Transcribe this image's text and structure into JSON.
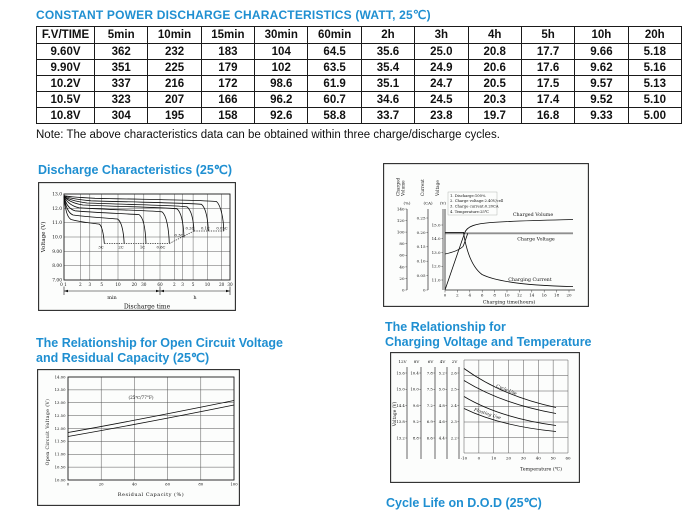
{
  "colors": {
    "accent": "#1f8fd1"
  },
  "title": "CONSTANT POWER DISCHARGE CHARACTERISTICS (WATT, 25℃)",
  "note": "Note: The above characteristics data can be obtained within three charge/discharge cycles.",
  "table": {
    "headers": [
      "F.V/TIME",
      "5min",
      "10min",
      "15min",
      "30min",
      "60min",
      "2h",
      "3h",
      "4h",
      "5h",
      "10h",
      "20h"
    ],
    "rows": [
      {
        "label": "9.60V",
        "values": [
          "362",
          "232",
          "183",
          "104",
          "64.5",
          "35.6",
          "25.0",
          "20.8",
          "17.7",
          "9.66",
          "5.18"
        ]
      },
      {
        "label": "9.90V",
        "values": [
          "351",
          "225",
          "179",
          "102",
          "63.5",
          "35.4",
          "24.9",
          "20.6",
          "17.6",
          "9.62",
          "5.16"
        ]
      },
      {
        "label": "10.2V",
        "values": [
          "337",
          "216",
          "172",
          "98.6",
          "61.9",
          "35.1",
          "24.7",
          "20.5",
          "17.5",
          "9.57",
          "5.13"
        ]
      },
      {
        "label": "10.5V",
        "values": [
          "323",
          "207",
          "166",
          "96.2",
          "60.7",
          "34.6",
          "24.5",
          "20.3",
          "17.4",
          "9.52",
          "5.10"
        ]
      },
      {
        "label": "10.8V",
        "values": [
          "304",
          "195",
          "158",
          "92.6",
          "58.8",
          "33.7",
          "23.8",
          "19.7",
          "16.8",
          "9.33",
          "5.00"
        ]
      }
    ]
  },
  "sections": {
    "discharge_title": "Discharge Characteristics (25℃)",
    "ocv_title_line1": "The Relationship for Open Circuit Voltage",
    "ocv_title_line2": "and Residual Capacity (25℃)",
    "temp_title_line1": "The Relationship for",
    "temp_title_line2": "Charging Voltage and Temperature",
    "cycle_title": "Cycle Life on D.O.D (25℃)"
  },
  "chart_data": [
    {
      "id": "discharge",
      "type": "line",
      "title": "Discharge Characteristics (25℃)",
      "ylabel": "Voltage (V)",
      "xlabel": "Discharge time",
      "x_units": [
        "min",
        "h"
      ],
      "ylim": [
        7.0,
        13.0
      ],
      "yticks": [
        "13.0",
        "12.0",
        "11.0",
        "10.0",
        "9.00",
        "8.00",
        "7.00"
      ],
      "xticks_min": [
        "0",
        "1",
        "2",
        "3",
        "5",
        "10",
        "20",
        "30",
        "60"
      ],
      "xticks_h": [
        "2",
        "3",
        "5",
        "10",
        "20",
        "30"
      ],
      "curves": [
        "3C",
        "2C",
        "1C",
        "0.6C",
        "0.3C",
        "0.2C",
        "0.1C",
        "0.05C"
      ],
      "cutoff_notes": "high-rate curves end near 9.5V, low-rate curves end near 10.4V"
    },
    {
      "id": "charge",
      "type": "line",
      "axes": [
        {
          "name": "Charged Volume",
          "unit": "(%)",
          "ticks": [
            "0",
            "20",
            "40",
            "60",
            "80",
            "100",
            "120",
            "140"
          ]
        },
        {
          "name": "Current",
          "unit": "(CA)",
          "ticks": [
            "0",
            "0.05",
            "0.10",
            "0.15",
            "0.20",
            "0.25"
          ]
        },
        {
          "name": "Voltage",
          "unit": "(V)",
          "ticks": [
            "11.0",
            "12.0",
            "13.0",
            "14.0",
            "15.0"
          ]
        }
      ],
      "xlabel": "Charging time(hours)",
      "xticks": [
        "0",
        "2",
        "4",
        "6",
        "8",
        "10",
        "12",
        "14",
        "16",
        "18",
        "20"
      ],
      "legend": [
        "1. Discharge:100%",
        "2. Charge voltage:2.40V/cell",
        "3. Charge current:0.20CA",
        "4. Temperature:25℃"
      ],
      "series": [
        "Charged Volume",
        "Charge Voltage",
        "Charging Current"
      ]
    },
    {
      "id": "ocv",
      "type": "line",
      "ylabel": "Open Circuit Voltage (V)",
      "xlabel": "Residual Capacity (%)",
      "yticks": [
        "14.00",
        "13.50",
        "13.00",
        "12.50",
        "12.00",
        "11.50",
        "11.00",
        "10.50",
        "10.00"
      ],
      "xticks": [
        "0",
        "20",
        "40",
        "60",
        "80",
        "100"
      ],
      "annotation": "(25℃/77°F)",
      "series": [
        {
          "name": "upper",
          "x": [
            0,
            100
          ],
          "y": [
            11.85,
            13.05
          ]
        },
        {
          "name": "lower",
          "x": [
            0,
            100
          ],
          "y": [
            11.7,
            12.9
          ]
        }
      ]
    },
    {
      "id": "temp",
      "type": "line",
      "ylabel": "Voltage (V)",
      "xlabel": "Temperature (℃)",
      "col_headers": [
        "12V",
        "8V",
        "6V",
        "4V",
        "2V"
      ],
      "col_ticks": [
        [
          "15.6",
          "15.0",
          "14.4",
          "13.8",
          "13.2"
        ],
        [
          "10.4",
          "10.0",
          "9.6",
          "9.2",
          "8.8"
        ],
        [
          "7.8",
          "7.5",
          "7.2",
          "6.9",
          "6.6"
        ],
        [
          "5.2",
          "5.0",
          "4.8",
          "4.6",
          "4.4"
        ],
        [
          "2.6",
          "2.5",
          "2.4",
          "2.3",
          "2.2"
        ]
      ],
      "xticks": [
        "-10",
        "0",
        "10",
        "20",
        "30",
        "40",
        "50",
        "60"
      ],
      "bands": [
        "Cycle Use",
        "Floating Use"
      ]
    }
  ]
}
